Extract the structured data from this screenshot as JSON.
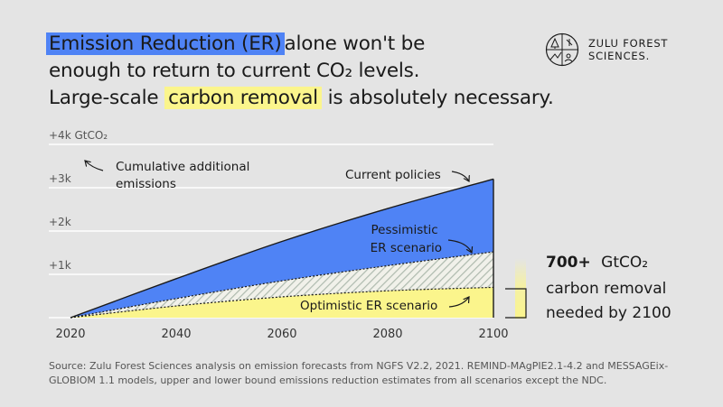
{
  "headline": {
    "highlight_er": "Emission Reduction (ER)",
    "line1_rest": "alone won't be",
    "line2": "enough to return to current CO₂ levels.",
    "line3_pre": "Large-scale",
    "highlight_cr": "carbon removal",
    "line3_post": "is absolutely necessary."
  },
  "logo": {
    "line1": "ZULU FOREST",
    "line2": "SCIENCES."
  },
  "colors": {
    "blue": "#4f83f5",
    "yellow": "#fbf58c",
    "hatch": "#b9c3b9",
    "background": "#e4e4e4"
  },
  "chart_data": {
    "type": "area",
    "x": [
      2020,
      2040,
      2060,
      2080,
      2100
    ],
    "xlim": [
      2020,
      2100
    ],
    "ylim": [
      0,
      4000
    ],
    "x_ticks": [
      "2020",
      "2040",
      "2060",
      "2080",
      "2100"
    ],
    "y_ticks": [
      "+1k",
      "+2k",
      "+3k",
      "+4k GtCO₂"
    ],
    "y_tick_values": [
      1000,
      2000,
      3000,
      4000
    ],
    "grid": "horizontal",
    "series": [
      {
        "name": "Current policies",
        "values": [
          0,
          900,
          1760,
          2520,
          3200
        ]
      },
      {
        "name": "Pessimistic ER scenario",
        "values": [
          0,
          440,
          850,
          1200,
          1520
        ]
      },
      {
        "name": "Optimistic ER scenario",
        "values": [
          0,
          270,
          480,
          620,
          700
        ]
      }
    ],
    "annotations": {
      "cumulative": "Cumulative additional emissions",
      "callout_bold": "700+",
      "callout_unit": "GtCO₂",
      "callout_line2": "carbon removal",
      "callout_line3": "needed by 2100",
      "needed_by_2100": 700
    }
  },
  "source": "Source: Zulu Forest Sciences analysis on emission forecasts from NGFS V2.2, 2021. REMIND-MAgPIE2.1-4.2 and MESSAGEix-GLOBIOM 1.1 models, upper and lower bound emissions reduction estimates from all scenarios except the NDC."
}
